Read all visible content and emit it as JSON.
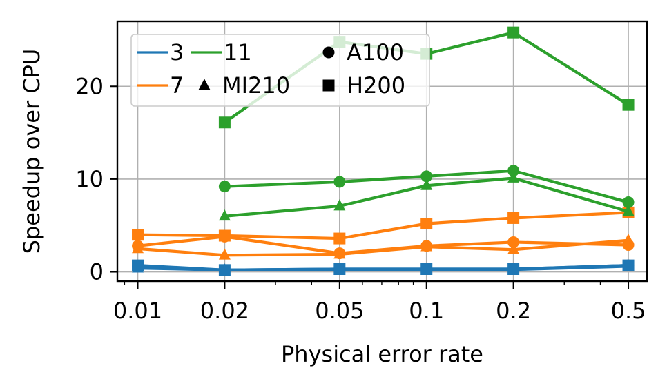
{
  "chart_data": {
    "type": "line",
    "title": "",
    "xlabel": "Physical error rate",
    "ylabel": "Speedup over CPU",
    "xscale": "log",
    "x_ticks": [
      0.01,
      0.02,
      0.05,
      0.1,
      0.2,
      0.5
    ],
    "x_tick_labels": [
      "0.01",
      "0.02",
      "0.05",
      "0.1",
      "0.2",
      "0.5"
    ],
    "y_ticks": [
      0,
      10,
      20
    ],
    "y_tick_labels": [
      "0",
      "10",
      "20"
    ],
    "xlim": [
      0.0085,
      0.58
    ],
    "ylim": [
      -1,
      27
    ],
    "grid": true,
    "legend_position": "top-left",
    "legend": {
      "distances": [
        {
          "label": "3",
          "color": "#1f77b4"
        },
        {
          "label": "7",
          "color": "#ff7f0e"
        },
        {
          "label": "11",
          "color": "#2ca02c"
        }
      ],
      "devices": [
        {
          "label": "A100",
          "marker": "circle"
        },
        {
          "label": "MI210",
          "marker": "triangle"
        },
        {
          "label": "H200",
          "marker": "square"
        }
      ]
    },
    "series": [
      {
        "distance": "3",
        "device": "A100",
        "color": "#1f77b4",
        "marker": "circle",
        "x": [
          0.01,
          0.02,
          0.05,
          0.1,
          0.2,
          0.5
        ],
        "y": [
          0.6,
          0.2,
          0.3,
          0.3,
          0.3,
          0.7
        ]
      },
      {
        "distance": "3",
        "device": "MI210",
        "color": "#1f77b4",
        "marker": "triangle",
        "x": [
          0.01,
          0.02,
          0.05,
          0.1,
          0.2,
          0.5
        ],
        "y": [
          0.4,
          0.2,
          0.25,
          0.25,
          0.25,
          0.6
        ]
      },
      {
        "distance": "3",
        "device": "H200",
        "color": "#1f77b4",
        "marker": "square",
        "x": [
          0.01,
          0.02,
          0.05,
          0.1,
          0.2,
          0.5
        ],
        "y": [
          0.7,
          0.2,
          0.3,
          0.3,
          0.3,
          0.7
        ]
      },
      {
        "distance": "7",
        "device": "A100",
        "color": "#ff7f0e",
        "marker": "circle",
        "x": [
          0.01,
          0.02,
          0.05,
          0.1,
          0.2,
          0.5
        ],
        "y": [
          2.8,
          3.8,
          2.0,
          2.8,
          3.2,
          2.9
        ]
      },
      {
        "distance": "7",
        "device": "MI210",
        "color": "#ff7f0e",
        "marker": "triangle",
        "x": [
          0.01,
          0.02,
          0.05,
          0.1,
          0.2,
          0.5
        ],
        "y": [
          2.5,
          1.8,
          1.9,
          2.7,
          2.4,
          3.4
        ]
      },
      {
        "distance": "7",
        "device": "H200",
        "color": "#ff7f0e",
        "marker": "square",
        "x": [
          0.01,
          0.02,
          0.05,
          0.1,
          0.2,
          0.5
        ],
        "y": [
          4.0,
          3.9,
          3.6,
          5.2,
          5.8,
          6.4
        ]
      },
      {
        "distance": "11",
        "device": "A100",
        "color": "#2ca02c",
        "marker": "circle",
        "x": [
          0.02,
          0.05,
          0.1,
          0.2,
          0.5
        ],
        "y": [
          9.2,
          9.7,
          10.3,
          10.9,
          7.5
        ]
      },
      {
        "distance": "11",
        "device": "MI210",
        "color": "#2ca02c",
        "marker": "triangle",
        "x": [
          0.02,
          0.05,
          0.1,
          0.2,
          0.5
        ],
        "y": [
          6.0,
          7.1,
          9.3,
          10.1,
          6.5
        ]
      },
      {
        "distance": "11",
        "device": "H200",
        "color": "#2ca02c",
        "marker": "square",
        "x": [
          0.02,
          0.05,
          0.1,
          0.2,
          0.5
        ],
        "y": [
          16.1,
          24.8,
          23.5,
          25.8,
          18.0
        ]
      }
    ]
  }
}
